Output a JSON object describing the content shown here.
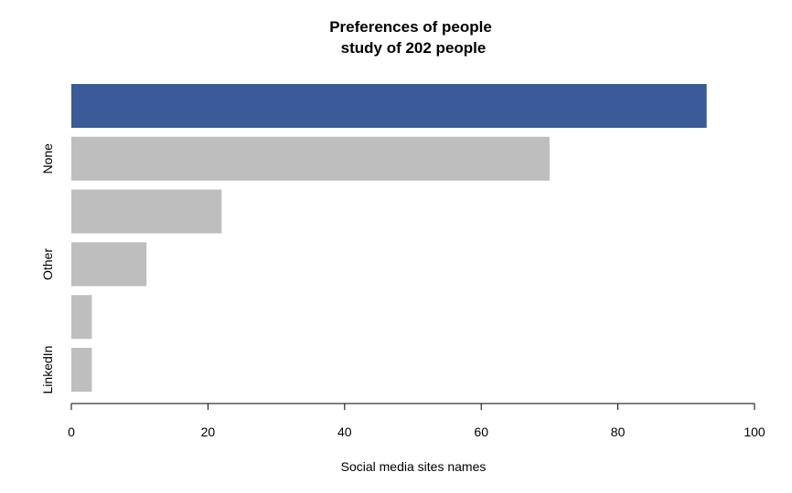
{
  "chart_data": {
    "type": "bar",
    "orientation": "horizontal",
    "title": "Preferences of people",
    "subtitle": "study of 202 people",
    "xlabel": "Social media sites names",
    "ylabel": "",
    "xlim": [
      0,
      100
    ],
    "x_ticks": [
      0,
      20,
      40,
      60,
      80,
      100
    ],
    "categories_bottom_to_top": [
      "LinkedIn",
      "",
      "Other",
      "",
      "None",
      ""
    ],
    "values_bottom_to_top": [
      3,
      3,
      11,
      22,
      70,
      93
    ],
    "highlight_index_bottom_to_top": 5,
    "colors": {
      "highlight": "#3a5a9a",
      "default": "#bebebe"
    },
    "grid": false,
    "legend": "none"
  }
}
